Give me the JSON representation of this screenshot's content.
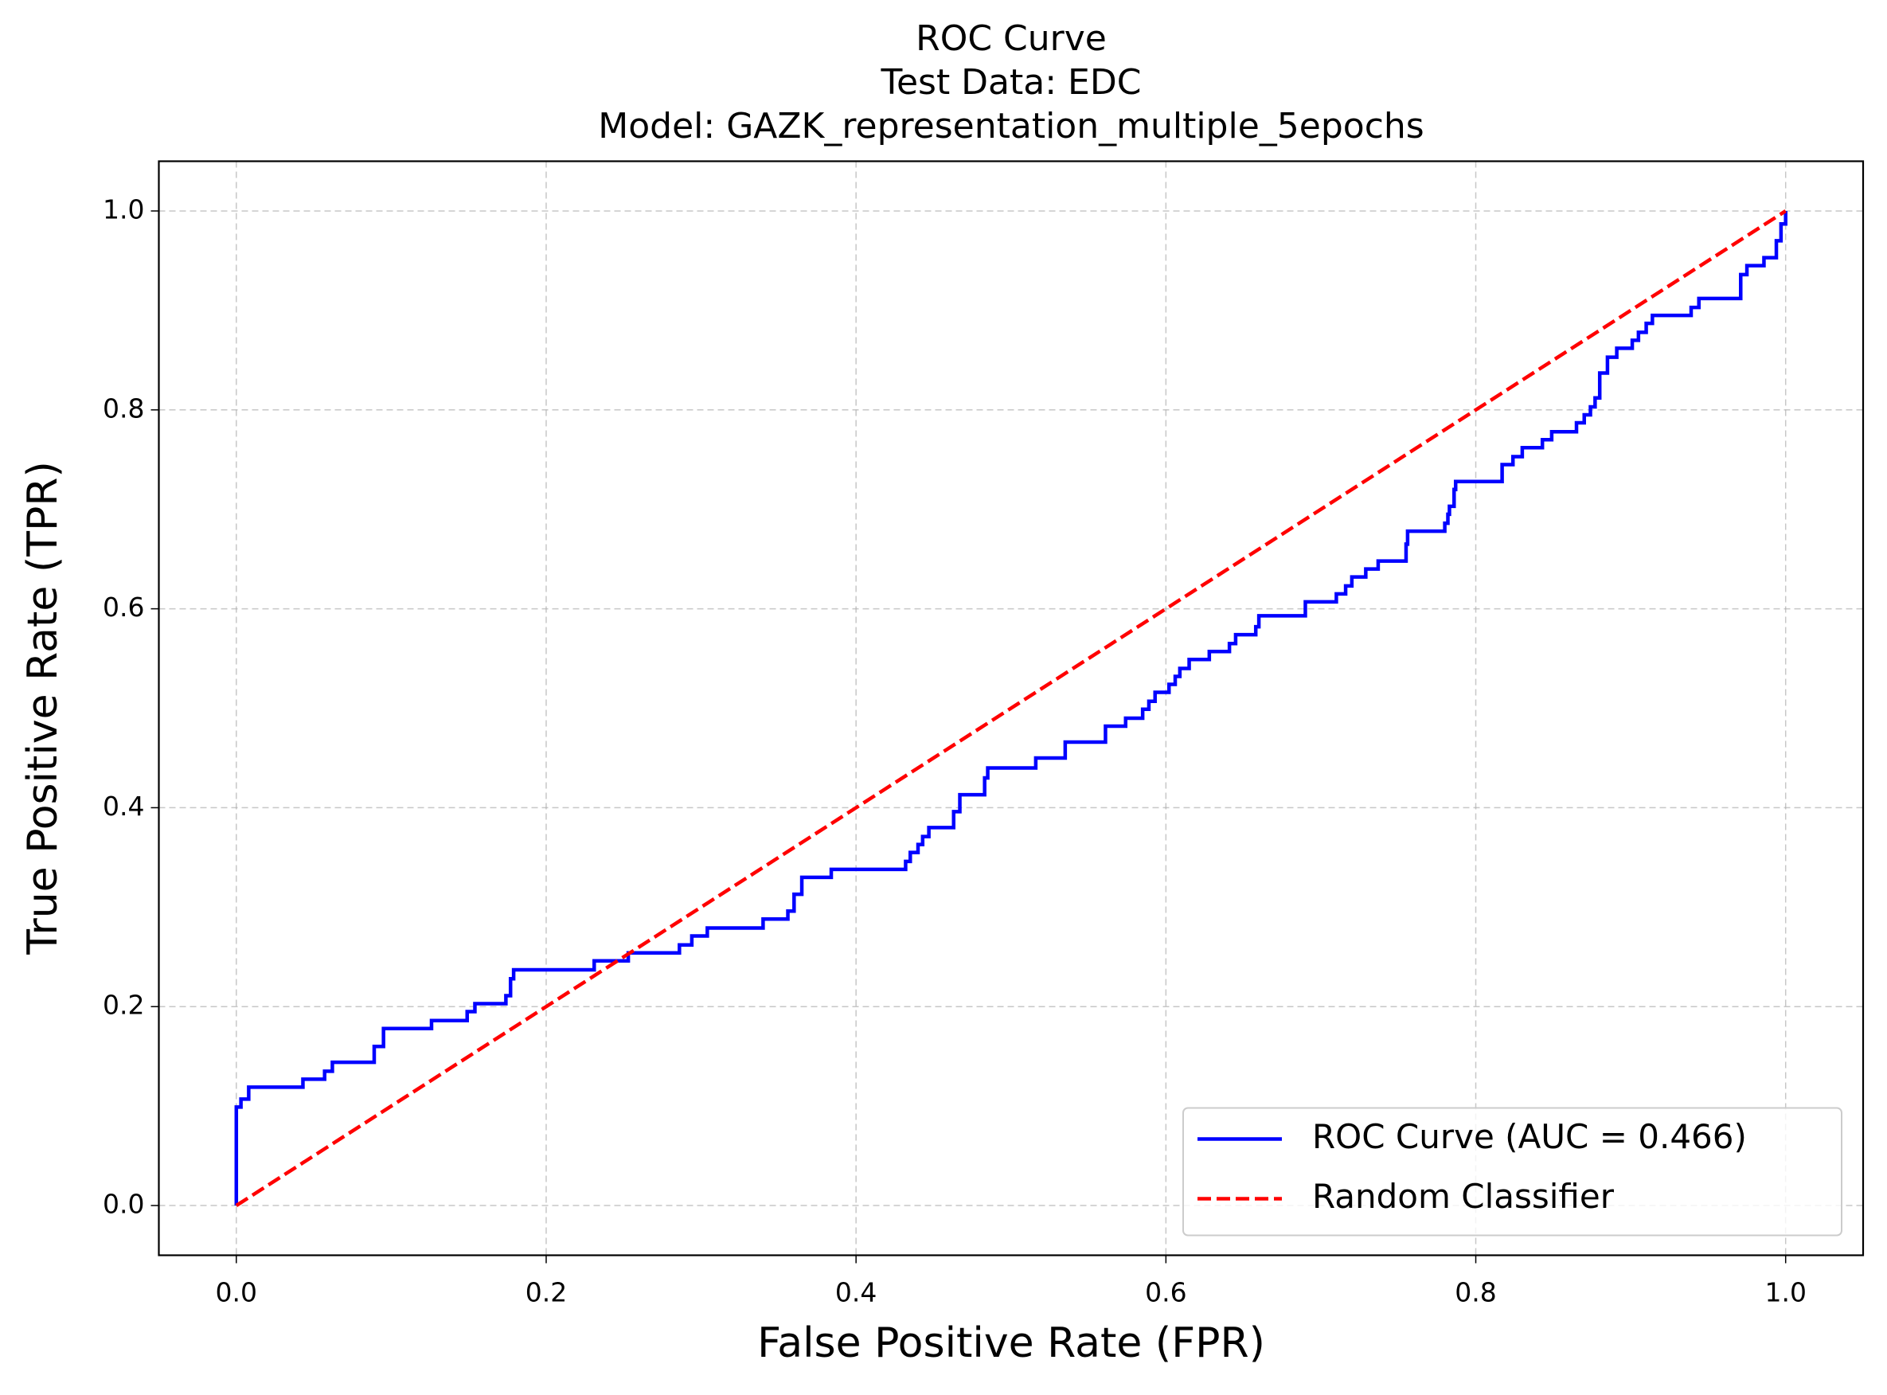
{
  "chart_data": {
    "type": "line",
    "title": [
      "ROC Curve",
      "Test Data: EDC",
      "Model: GAZK_representation_multiple_5epochs"
    ],
    "x_label": "False Positive Rate (FPR)",
    "y_label": "True Positive Rate (TPR)",
    "xlim": [
      -0.05,
      1.05
    ],
    "ylim": [
      -0.05,
      1.05
    ],
    "xticks": [
      {
        "value": 0,
        "label": "0.0"
      },
      0.2,
      0.4,
      0.6,
      0.8,
      {
        "value": 1,
        "label": "1.0"
      }
    ],
    "yticks": [
      {
        "value": 0,
        "label": "0.0"
      },
      0.2,
      0.4,
      0.6,
      0.8,
      {
        "value": 1,
        "label": "1.0"
      }
    ],
    "grid": true,
    "legend": "lower right",
    "series": [
      {
        "name": "ROC Curve (AUC = 0.466)",
        "color": "#0000ff",
        "style": "solid",
        "x": [
          0,
          0,
          0.003,
          0.003,
          0.008,
          0.008,
          0.043,
          0.043,
          0.057,
          0.057,
          0.062,
          0.062,
          0.089,
          0.089,
          0.095,
          0.095,
          0.126,
          0.126,
          0.149,
          0.149,
          0.154,
          0.154,
          0.174,
          0.174,
          0.177,
          0.177,
          0.179,
          0.179,
          0.231,
          0.231,
          0.253,
          0.253,
          0.286,
          0.286,
          0.294,
          0.294,
          0.304,
          0.304,
          0.34,
          0.34,
          0.356,
          0.356,
          0.36,
          0.36,
          0.365,
          0.365,
          0.384,
          0.384,
          0.432,
          0.432,
          0.435,
          0.435,
          0.44,
          0.44,
          0.443,
          0.443,
          0.447,
          0.447,
          0.463,
          0.463,
          0.467,
          0.467,
          0.483,
          0.483,
          0.485,
          0.485,
          0.516,
          0.516,
          0.535,
          0.535,
          0.561,
          0.561,
          0.574,
          0.574,
          0.585,
          0.585,
          0.589,
          0.589,
          0.593,
          0.593,
          0.602,
          0.602,
          0.606,
          0.606,
          0.609,
          0.609,
          0.615,
          0.615,
          0.628,
          0.628,
          0.641,
          0.641,
          0.645,
          0.645,
          0.658,
          0.658,
          0.66,
          0.66,
          0.69,
          0.69,
          0.71,
          0.71,
          0.716,
          0.716,
          0.72,
          0.72,
          0.729,
          0.729,
          0.737,
          0.737,
          0.755,
          0.755,
          0.756,
          0.756,
          0.78,
          0.78,
          0.782,
          0.782,
          0.783,
          0.783,
          0.786,
          0.786,
          0.787,
          0.787,
          0.817,
          0.817,
          0.824,
          0.824,
          0.83,
          0.83,
          0.843,
          0.843,
          0.849,
          0.849,
          0.865,
          0.865,
          0.87,
          0.87,
          0.874,
          0.874,
          0.877,
          0.877,
          0.88,
          0.88,
          0.885,
          0.885,
          0.891,
          0.891,
          0.901,
          0.901,
          0.905,
          0.905,
          0.91,
          0.91,
          0.914,
          0.914,
          0.939,
          0.939,
          0.944,
          0.944,
          0.971,
          0.971,
          0.975,
          0.975,
          0.986,
          0.986,
          0.994,
          0.994,
          0.997,
          0.997,
          1,
          1
        ],
        "values": [
          0,
          0.099,
          0.099,
          0.107,
          0.107,
          0.119,
          0.119,
          0.127,
          0.127,
          0.135,
          0.135,
          0.144,
          0.144,
          0.16,
          0.16,
          0.178,
          0.178,
          0.186,
          0.186,
          0.195,
          0.195,
          0.203,
          0.203,
          0.211,
          0.211,
          0.228,
          0.228,
          0.237,
          0.237,
          0.246,
          0.246,
          0.254,
          0.254,
          0.262,
          0.262,
          0.271,
          0.271,
          0.279,
          0.279,
          0.288,
          0.288,
          0.296,
          0.296,
          0.313,
          0.313,
          0.33,
          0.33,
          0.338,
          0.338,
          0.346,
          0.346,
          0.355,
          0.355,
          0.363,
          0.363,
          0.371,
          0.371,
          0.38,
          0.38,
          0.396,
          0.396,
          0.413,
          0.413,
          0.43,
          0.43,
          0.44,
          0.44,
          0.45,
          0.45,
          0.466,
          0.466,
          0.482,
          0.482,
          0.49,
          0.49,
          0.499,
          0.499,
          0.507,
          0.507,
          0.516,
          0.516,
          0.524,
          0.524,
          0.532,
          0.532,
          0.54,
          0.54,
          0.549,
          0.549,
          0.557,
          0.557,
          0.565,
          0.565,
          0.574,
          0.574,
          0.582,
          0.582,
          0.593,
          0.593,
          0.607,
          0.607,
          0.615,
          0.615,
          0.623,
          0.623,
          0.632,
          0.632,
          0.64,
          0.64,
          0.648,
          0.648,
          0.665,
          0.665,
          0.678,
          0.678,
          0.686,
          0.686,
          0.695,
          0.695,
          0.703,
          0.703,
          0.72,
          0.72,
          0.728,
          0.728,
          0.745,
          0.745,
          0.753,
          0.753,
          0.762,
          0.762,
          0.77,
          0.77,
          0.778,
          0.778,
          0.787,
          0.787,
          0.795,
          0.795,
          0.803,
          0.803,
          0.812,
          0.812,
          0.837,
          0.837,
          0.853,
          0.853,
          0.862,
          0.862,
          0.87,
          0.87,
          0.878,
          0.878,
          0.887,
          0.887,
          0.895,
          0.895,
          0.903,
          0.903,
          0.912,
          0.912,
          0.936,
          0.936,
          0.945,
          0.945,
          0.953,
          0.953,
          0.97,
          0.97,
          0.987,
          0.987,
          1
        ]
      },
      {
        "name": "Random Classifier",
        "color": "#ff0000",
        "style": "dashed",
        "x": [
          0,
          1
        ],
        "values": [
          0,
          1
        ]
      }
    ]
  }
}
